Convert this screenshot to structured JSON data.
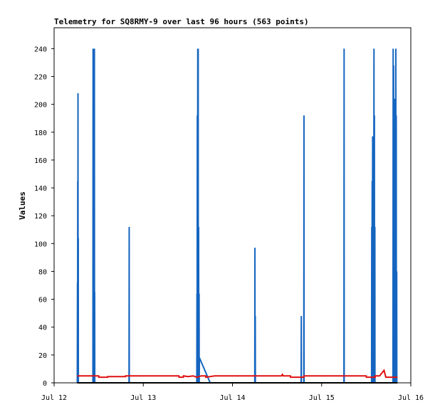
{
  "chart_data": {
    "type": "line",
    "title": "Telemetry for SQ8RMY-9 over last 96 hours (563 points)",
    "xlabel": "",
    "ylabel": "Values",
    "xlim": [
      "Jul 12 00:00",
      "Jul 16 00:00"
    ],
    "ylim": [
      0,
      255
    ],
    "x_ticks": [
      {
        "label": "Jul 12",
        "x": 0
      },
      {
        "label": "Jul 13",
        "x": 1
      },
      {
        "label": "Jul 14",
        "x": 2
      },
      {
        "label": "Jul 15",
        "x": 3
      },
      {
        "label": "Jul 16",
        "x": 4
      }
    ],
    "y_ticks": [
      0,
      20,
      40,
      60,
      80,
      100,
      120,
      140,
      160,
      180,
      200,
      220,
      240
    ],
    "x_unit": "days since Jul 12 00:00",
    "grid": false,
    "series": [
      {
        "name": "blue",
        "color": "#1565c0",
        "points": [
          [
            0.26,
            0
          ],
          [
            0.262,
            72
          ],
          [
            0.263,
            0
          ],
          [
            0.265,
            145
          ],
          [
            0.266,
            0
          ],
          [
            0.268,
            208
          ],
          [
            0.269,
            0
          ],
          [
            0.271,
            104
          ],
          [
            0.272,
            0
          ],
          [
            0.435,
            0
          ],
          [
            0.437,
            240
          ],
          [
            0.438,
            0
          ],
          [
            0.44,
            240
          ],
          [
            0.441,
            0
          ],
          [
            0.444,
            240
          ],
          [
            0.445,
            0
          ],
          [
            0.447,
            145
          ],
          [
            0.448,
            0
          ],
          [
            0.452,
            240
          ],
          [
            0.453,
            0
          ],
          [
            0.455,
            65
          ],
          [
            0.456,
            0
          ],
          [
            0.84,
            0
          ],
          [
            0.842,
            112
          ],
          [
            0.843,
            0
          ],
          [
            1.6,
            0
          ],
          [
            1.602,
            64
          ],
          [
            1.603,
            0
          ],
          [
            1.606,
            192
          ],
          [
            1.607,
            0
          ],
          [
            1.611,
            240
          ],
          [
            1.612,
            0
          ],
          [
            1.616,
            240
          ],
          [
            1.617,
            0
          ],
          [
            1.621,
            112
          ],
          [
            1.622,
            0
          ],
          [
            1.626,
            64
          ],
          [
            1.627,
            0
          ],
          [
            1.63,
            18
          ],
          [
            1.75,
            0
          ],
          [
            2.25,
            0
          ],
          [
            2.252,
            97
          ],
          [
            2.253,
            0
          ],
          [
            2.256,
            48
          ],
          [
            2.257,
            0
          ],
          [
            2.77,
            0
          ],
          [
            2.772,
            48
          ],
          [
            2.773,
            0
          ],
          [
            2.8,
            0
          ],
          [
            2.802,
            192
          ],
          [
            2.803,
            0
          ],
          [
            3.25,
            0
          ],
          [
            3.252,
            240
          ],
          [
            3.253,
            0
          ],
          [
            3.56,
            0
          ],
          [
            3.562,
            112
          ],
          [
            3.563,
            0
          ],
          [
            3.567,
            145
          ],
          [
            3.568,
            0
          ],
          [
            3.572,
            177
          ],
          [
            3.573,
            0
          ],
          [
            3.577,
            152
          ],
          [
            3.578,
            0
          ],
          [
            3.582,
            48
          ],
          [
            3.583,
            0
          ],
          [
            3.587,
            240
          ],
          [
            3.588,
            0
          ],
          [
            3.592,
            192
          ],
          [
            3.593,
            0
          ],
          [
            3.597,
            112
          ],
          [
            3.598,
            0
          ],
          [
            3.8,
            0
          ],
          [
            3.802,
            240
          ],
          [
            3.803,
            0
          ],
          [
            3.807,
            228
          ],
          [
            3.808,
            0
          ],
          [
            3.812,
            180
          ],
          [
            3.813,
            0
          ],
          [
            3.817,
            204
          ],
          [
            3.818,
            0
          ],
          [
            3.822,
            156
          ],
          [
            3.823,
            0
          ],
          [
            3.827,
            64
          ],
          [
            3.828,
            0
          ],
          [
            3.832,
            240
          ],
          [
            3.833,
            0
          ],
          [
            3.837,
            192
          ],
          [
            3.838,
            0
          ],
          [
            3.842,
            80
          ],
          [
            3.843,
            0
          ]
        ]
      },
      {
        "name": "red",
        "color": "#e01010",
        "points": [
          [
            0.26,
            5
          ],
          [
            0.5,
            5
          ],
          [
            0.501,
            4
          ],
          [
            0.6,
            4
          ],
          [
            0.601,
            4.5
          ],
          [
            0.8,
            4.5
          ],
          [
            0.801,
            5
          ],
          [
            1.4,
            5
          ],
          [
            1.401,
            4
          ],
          [
            1.45,
            4
          ],
          [
            1.451,
            5
          ],
          [
            1.5,
            4.5
          ],
          [
            1.56,
            5
          ],
          [
            1.6,
            4
          ],
          [
            1.65,
            5
          ],
          [
            1.7,
            5
          ],
          [
            1.701,
            4
          ],
          [
            1.75,
            4.5
          ],
          [
            1.8,
            5
          ],
          [
            2.55,
            5
          ],
          [
            2.56,
            6
          ],
          [
            2.57,
            5
          ],
          [
            2.65,
            5
          ],
          [
            2.651,
            4
          ],
          [
            2.8,
            4
          ],
          [
            2.801,
            5
          ],
          [
            3.5,
            5
          ],
          [
            3.501,
            4
          ],
          [
            3.6,
            4
          ],
          [
            3.601,
            5
          ],
          [
            3.65,
            5
          ],
          [
            3.7,
            9
          ],
          [
            3.72,
            4
          ],
          [
            3.85,
            4
          ]
        ]
      },
      {
        "name": "black",
        "color": "#000000",
        "points": [
          [
            0.26,
            0
          ],
          [
            3.85,
            0
          ]
        ]
      }
    ]
  }
}
